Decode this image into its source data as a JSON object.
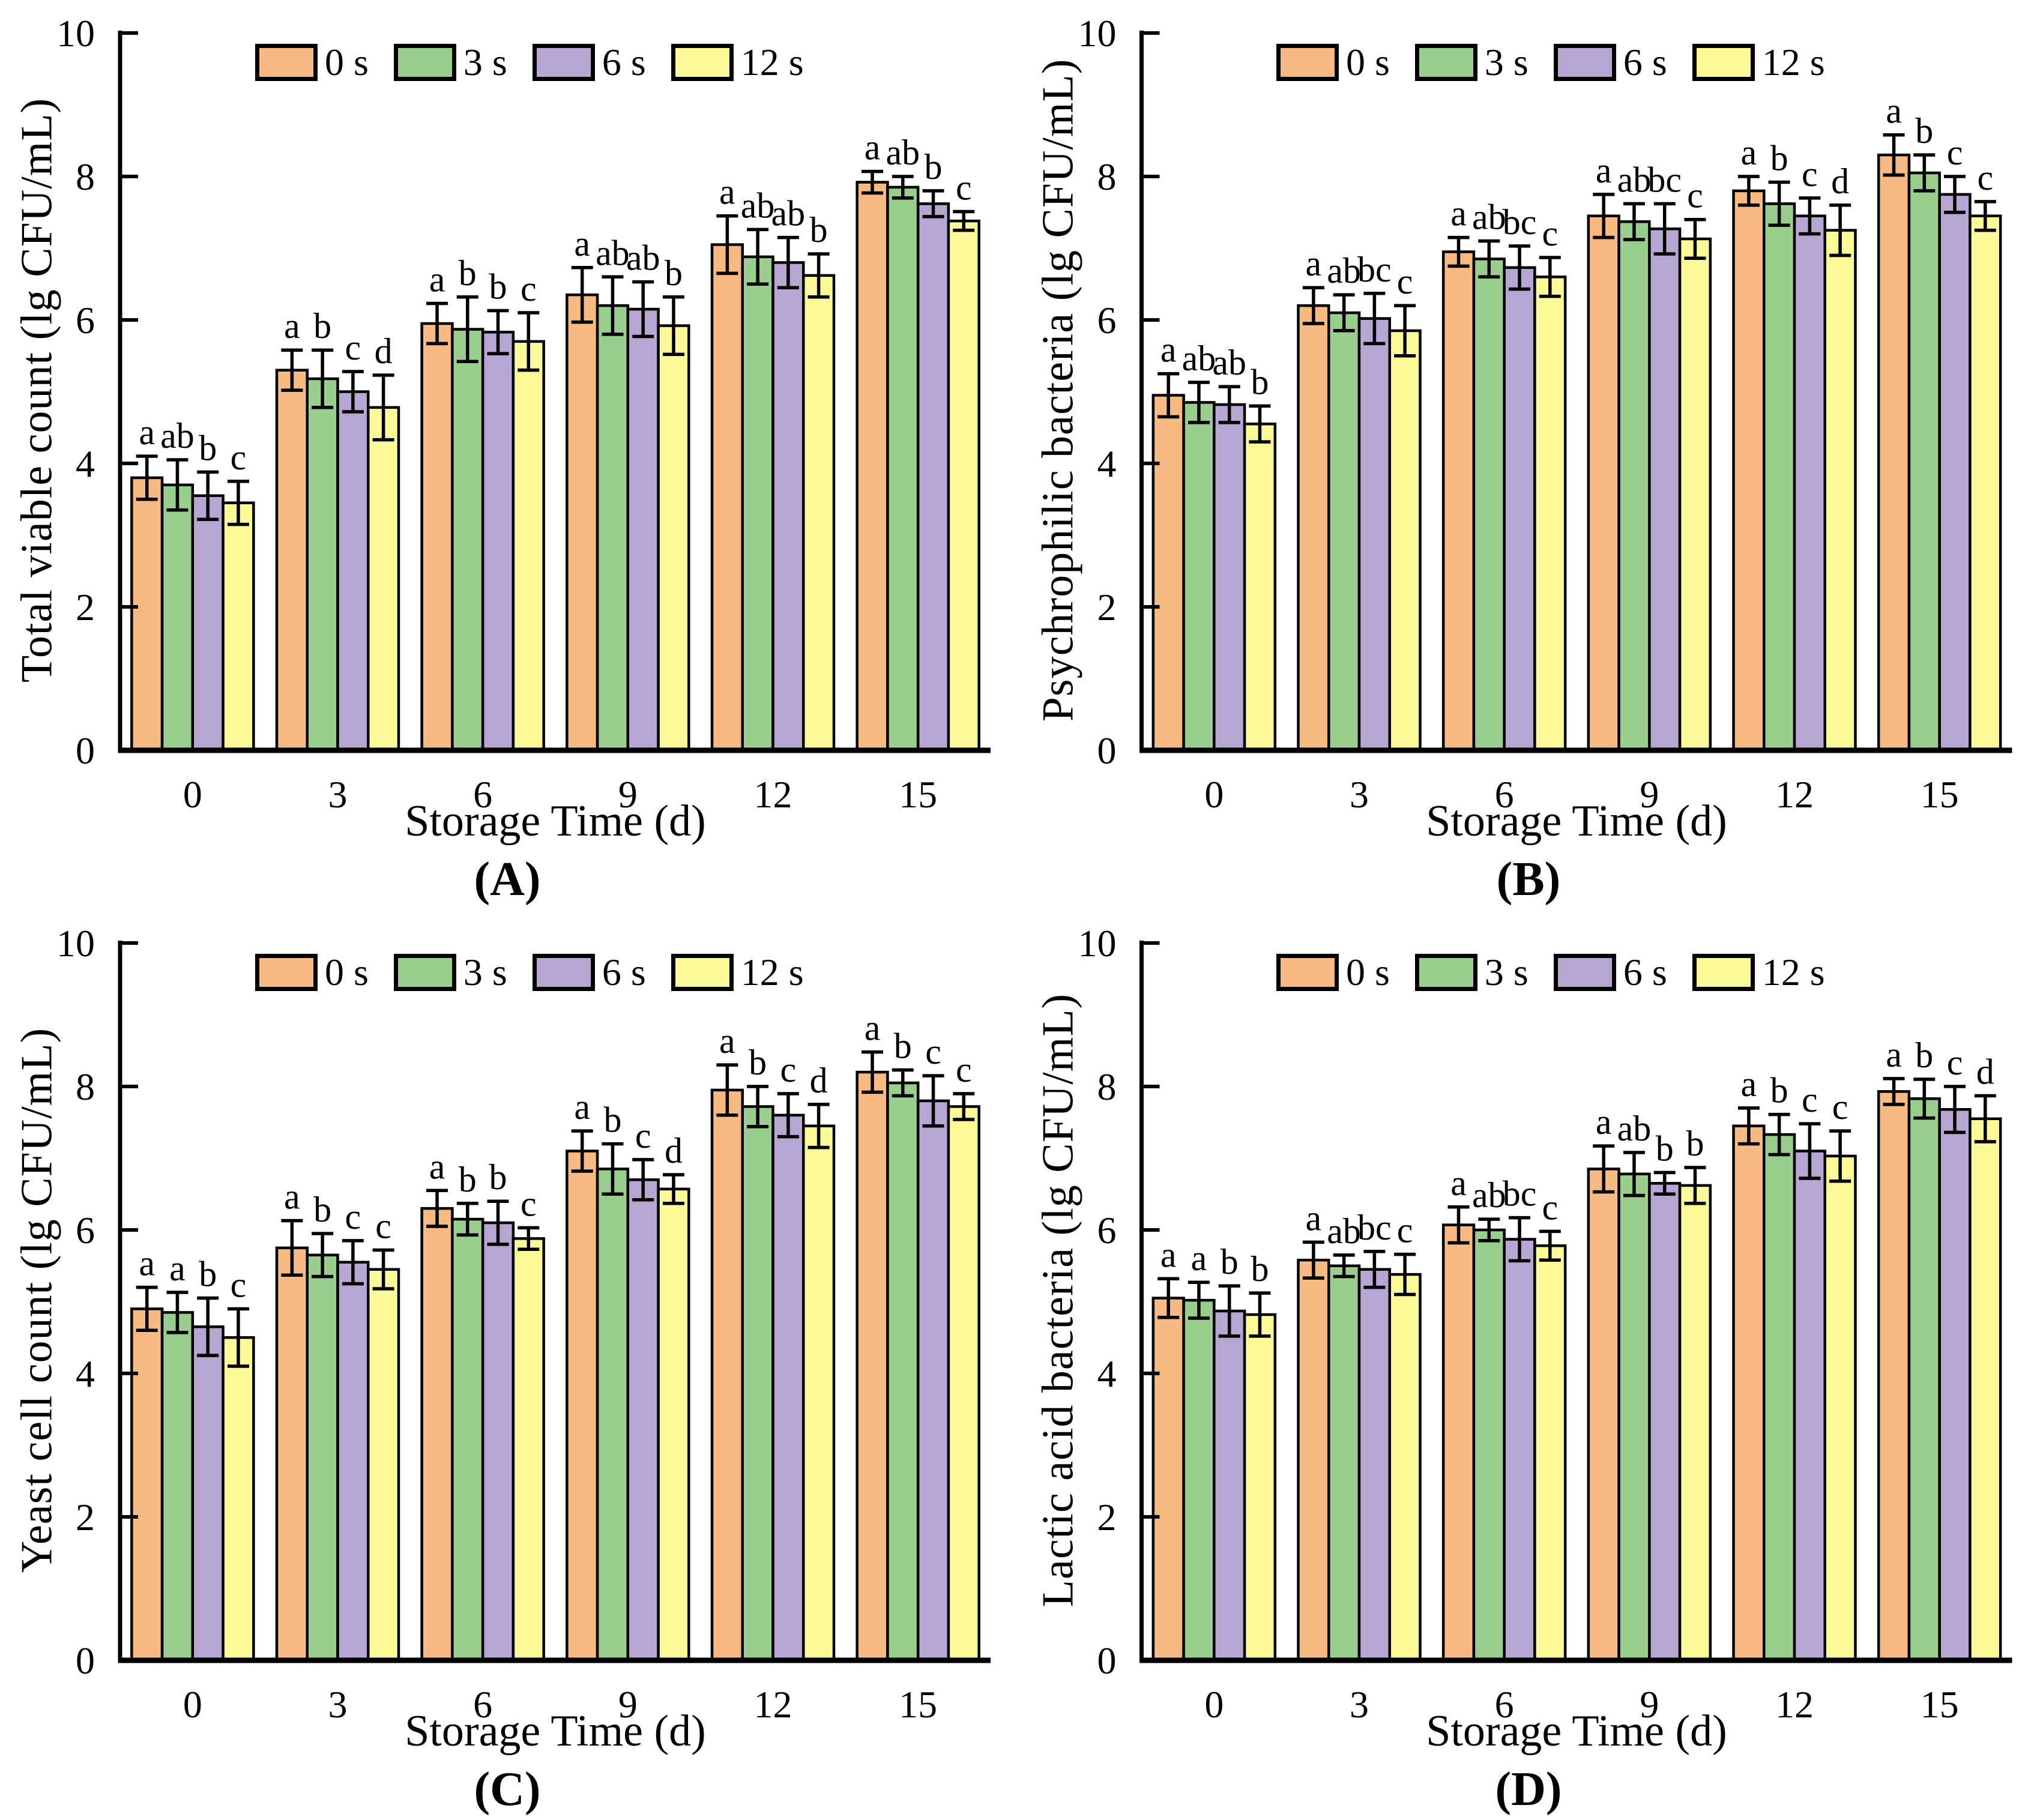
{
  "style": {
    "background": "#ffffff",
    "axis_color": "#000000",
    "text_color": "#000000",
    "series_colors": {
      "0 s": "#F6BA82",
      "3 s": "#9ACE8E",
      "6 s": "#B5A7D2",
      "12 s": "#FCFA98"
    }
  },
  "legend_labels": [
    "0 s",
    "3 s",
    "6 s",
    "12 s"
  ],
  "chart_data": [
    {
      "type": "bar",
      "panel_label": "(A)",
      "ylabel": "Total viable count (lg CFU/mL)",
      "xlabel": "Storage Time (d)",
      "ylim": [
        0,
        10
      ],
      "yticks": [
        0,
        2,
        4,
        6,
        8,
        10
      ],
      "categories": [
        "0",
        "3",
        "6",
        "9",
        "12",
        "15"
      ],
      "legend_position": "top",
      "grid": false,
      "series": [
        {
          "name": "0 s",
          "color": "#F6BA82",
          "values": [
            3.8,
            5.3,
            5.95,
            6.35,
            7.05,
            7.92
          ],
          "errors": [
            0.3,
            0.28,
            0.28,
            0.38,
            0.4,
            0.15
          ],
          "letters": [
            "a",
            "a",
            "a",
            "a",
            "a",
            "a"
          ]
        },
        {
          "name": "3 s",
          "color": "#9ACE8E",
          "values": [
            3.7,
            5.18,
            5.87,
            6.2,
            6.88,
            7.85
          ],
          "errors": [
            0.35,
            0.4,
            0.45,
            0.4,
            0.38,
            0.15
          ],
          "letters": [
            "ab",
            "b",
            "b",
            "ab",
            "ab",
            "ab"
          ]
        },
        {
          "name": "6 s",
          "color": "#B5A7D2",
          "values": [
            3.55,
            5.0,
            5.83,
            6.15,
            6.8,
            7.62
          ],
          "errors": [
            0.33,
            0.28,
            0.3,
            0.38,
            0.35,
            0.18
          ],
          "letters": [
            "b",
            "c",
            "b",
            "ab",
            "ab",
            "b"
          ]
        },
        {
          "name": "12 s",
          "color": "#FCFA98",
          "values": [
            3.45,
            4.78,
            5.7,
            5.92,
            6.62,
            7.38
          ],
          "errors": [
            0.3,
            0.45,
            0.4,
            0.4,
            0.3,
            0.13
          ],
          "letters": [
            "c",
            "d",
            "c",
            "b",
            "b",
            "c"
          ]
        }
      ]
    },
    {
      "type": "bar",
      "panel_label": "(B)",
      "ylabel": "Psychrophilic bacteria (lg CFU/mL)",
      "xlabel": "Storage Time (d)",
      "ylim": [
        0,
        10
      ],
      "yticks": [
        0,
        2,
        4,
        6,
        8,
        10
      ],
      "categories": [
        "0",
        "3",
        "6",
        "9",
        "12",
        "15"
      ],
      "legend_position": "top",
      "grid": false,
      "series": [
        {
          "name": "0 s",
          "color": "#F6BA82",
          "values": [
            4.95,
            6.2,
            6.95,
            7.45,
            7.8,
            8.3
          ],
          "errors": [
            0.3,
            0.25,
            0.2,
            0.3,
            0.2,
            0.28
          ],
          "letters": [
            "a",
            "a",
            "a",
            "a",
            "a",
            "a"
          ]
        },
        {
          "name": "3 s",
          "color": "#9ACE8E",
          "values": [
            4.85,
            6.1,
            6.85,
            7.37,
            7.62,
            8.05
          ],
          "errors": [
            0.28,
            0.25,
            0.25,
            0.25,
            0.3,
            0.25
          ],
          "letters": [
            "ab",
            "ab",
            "ab",
            "ab",
            "b",
            "b"
          ]
        },
        {
          "name": "6 s",
          "color": "#B5A7D2",
          "values": [
            4.82,
            6.02,
            6.73,
            7.27,
            7.45,
            7.75
          ],
          "errors": [
            0.25,
            0.35,
            0.3,
            0.35,
            0.25,
            0.25
          ],
          "letters": [
            "ab",
            "bc",
            "bc",
            "bc",
            "c",
            "c"
          ]
        },
        {
          "name": "12 s",
          "color": "#FCFA98",
          "values": [
            4.55,
            5.85,
            6.6,
            7.13,
            7.25,
            7.45
          ],
          "errors": [
            0.25,
            0.35,
            0.27,
            0.27,
            0.35,
            0.2
          ],
          "letters": [
            "b",
            "c",
            "c",
            "c",
            "d",
            "c"
          ]
        }
      ]
    },
    {
      "type": "bar",
      "panel_label": "(C)",
      "ylabel": "Yeast cell count (lg CFU/mL)",
      "xlabel": "Storage Time (d)",
      "ylim": [
        0,
        10
      ],
      "yticks": [
        0,
        2,
        4,
        6,
        8,
        10
      ],
      "categories": [
        "0",
        "3",
        "6",
        "9",
        "12",
        "15"
      ],
      "legend_position": "top",
      "grid": false,
      "series": [
        {
          "name": "0 s",
          "color": "#F6BA82",
          "values": [
            4.9,
            5.75,
            6.3,
            7.1,
            7.95,
            8.2
          ],
          "errors": [
            0.3,
            0.38,
            0.25,
            0.28,
            0.35,
            0.28
          ],
          "letters": [
            "a",
            "a",
            "a",
            "a",
            "a",
            "a"
          ]
        },
        {
          "name": "3 s",
          "color": "#9ACE8E",
          "values": [
            4.85,
            5.65,
            6.15,
            6.85,
            7.72,
            8.05
          ],
          "errors": [
            0.28,
            0.3,
            0.22,
            0.35,
            0.28,
            0.18
          ],
          "letters": [
            "a",
            "b",
            "b",
            "b",
            "b",
            "b"
          ]
        },
        {
          "name": "6 s",
          "color": "#B5A7D2",
          "values": [
            4.65,
            5.55,
            6.1,
            6.7,
            7.6,
            7.8
          ],
          "errors": [
            0.4,
            0.3,
            0.3,
            0.28,
            0.3,
            0.35
          ],
          "letters": [
            "b",
            "c",
            "b",
            "c",
            "c",
            "c"
          ]
        },
        {
          "name": "12 s",
          "color": "#FCFA98",
          "values": [
            4.5,
            5.45,
            5.88,
            6.57,
            7.45,
            7.72
          ],
          "errors": [
            0.4,
            0.27,
            0.15,
            0.2,
            0.3,
            0.18
          ],
          "letters": [
            "c",
            "c",
            "c",
            "d",
            "d",
            "c"
          ]
        }
      ]
    },
    {
      "type": "bar",
      "panel_label": "(D)",
      "ylabel": "Lactic acid bacteria (lg CFU/mL)",
      "xlabel": "Storage Time (d)",
      "ylim": [
        0,
        10
      ],
      "yticks": [
        0,
        2,
        4,
        6,
        8,
        10
      ],
      "categories": [
        "0",
        "3",
        "6",
        "9",
        "12",
        "15"
      ],
      "legend_position": "top",
      "grid": false,
      "series": [
        {
          "name": "0 s",
          "color": "#F6BA82",
          "values": [
            5.05,
            5.58,
            6.07,
            6.85,
            7.45,
            7.93
          ],
          "errors": [
            0.27,
            0.25,
            0.25,
            0.32,
            0.25,
            0.18
          ],
          "letters": [
            "a",
            "a",
            "a",
            "a",
            "a",
            "a"
          ]
        },
        {
          "name": "3 s",
          "color": "#9ACE8E",
          "values": [
            5.02,
            5.5,
            6.0,
            6.78,
            7.33,
            7.83
          ],
          "errors": [
            0.25,
            0.15,
            0.15,
            0.3,
            0.28,
            0.27
          ],
          "letters": [
            "a",
            "ab",
            "ab",
            "ab",
            "b",
            "b"
          ]
        },
        {
          "name": "6 s",
          "color": "#B5A7D2",
          "values": [
            4.87,
            5.45,
            5.87,
            6.65,
            7.1,
            7.68
          ],
          "errors": [
            0.35,
            0.25,
            0.3,
            0.15,
            0.38,
            0.32
          ],
          "letters": [
            "b",
            "bc",
            "bc",
            "b",
            "c",
            "c"
          ]
        },
        {
          "name": "12 s",
          "color": "#FCFA98",
          "values": [
            4.82,
            5.38,
            5.78,
            6.62,
            7.03,
            7.55
          ],
          "errors": [
            0.3,
            0.28,
            0.2,
            0.25,
            0.35,
            0.32
          ],
          "letters": [
            "b",
            "c",
            "c",
            "b",
            "c",
            "d"
          ]
        }
      ]
    }
  ]
}
